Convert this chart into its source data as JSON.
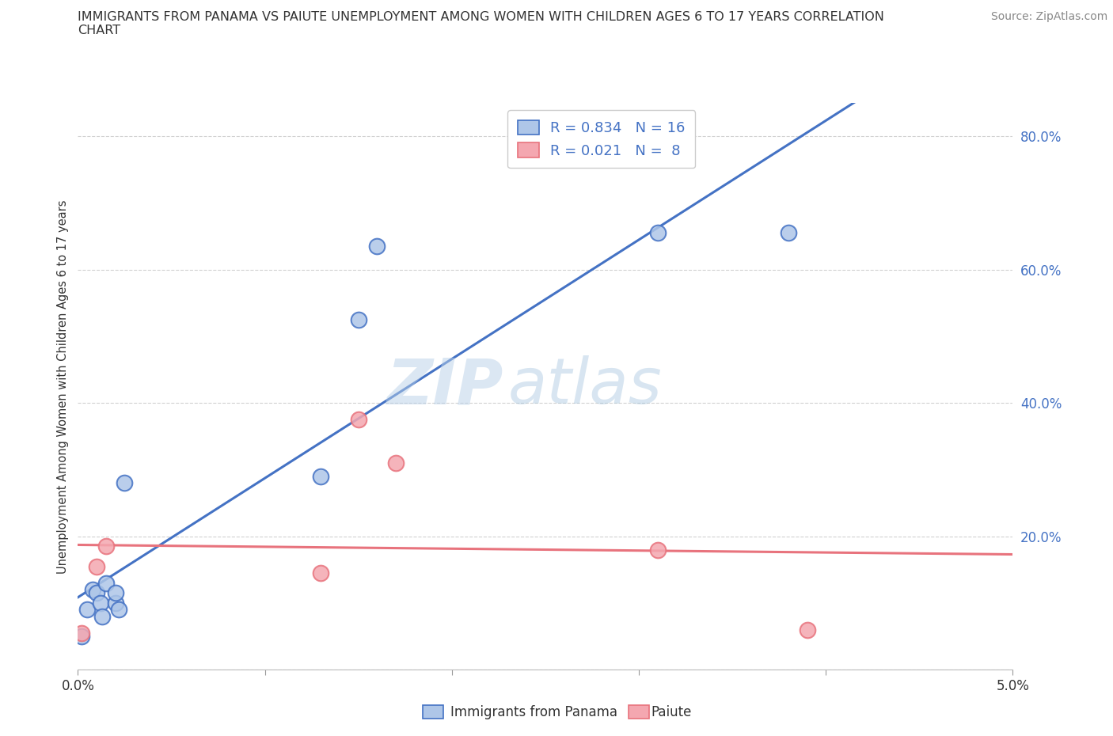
{
  "title_line1": "IMMIGRANTS FROM PANAMA VS PAIUTE UNEMPLOYMENT AMONG WOMEN WITH CHILDREN AGES 6 TO 17 YEARS CORRELATION",
  "title_line2": "CHART",
  "source": "Source: ZipAtlas.com",
  "ylabel": "Unemployment Among Women with Children Ages 6 to 17 years",
  "xlim": [
    0.0,
    0.05
  ],
  "ylim": [
    0.0,
    0.85
  ],
  "xticks": [
    0.0,
    0.01,
    0.02,
    0.03,
    0.04,
    0.05
  ],
  "xtick_labels": [
    "0.0%",
    "",
    "",
    "",
    "",
    "5.0%"
  ],
  "yticks": [
    0.0,
    0.2,
    0.4,
    0.6,
    0.8
  ],
  "ytick_labels": [
    "",
    "20.0%",
    "40.0%",
    "60.0%",
    "80.0%"
  ],
  "panama_x": [
    0.0002,
    0.0005,
    0.0008,
    0.001,
    0.0012,
    0.0013,
    0.0015,
    0.002,
    0.002,
    0.0022,
    0.0025,
    0.013,
    0.015,
    0.016,
    0.031,
    0.038
  ],
  "panama_y": [
    0.05,
    0.09,
    0.12,
    0.115,
    0.1,
    0.08,
    0.13,
    0.1,
    0.115,
    0.09,
    0.28,
    0.29,
    0.525,
    0.635,
    0.655,
    0.655
  ],
  "paiute_x": [
    0.0002,
    0.001,
    0.0015,
    0.013,
    0.015,
    0.017,
    0.031,
    0.039
  ],
  "paiute_y": [
    0.055,
    0.155,
    0.185,
    0.145,
    0.375,
    0.31,
    0.18,
    0.06
  ],
  "panama_color": "#aec6e8",
  "paiute_color": "#f4a7b0",
  "panama_edge_color": "#4472c4",
  "paiute_edge_color": "#e8737d",
  "panama_line_color": "#4472c4",
  "paiute_line_color": "#e8737d",
  "panama_R": 0.834,
  "panama_N": 16,
  "paiute_R": 0.021,
  "paiute_N": 8,
  "watermark_zip": "ZIP",
  "watermark_atlas": "atlas",
  "background_color": "#ffffff",
  "grid_color": "#cccccc",
  "legend_label_panama": "Immigrants from Panama",
  "legend_label_paiute": "Paiute",
  "title_fontsize": 11.5,
  "source_fontsize": 10,
  "tick_fontsize": 12,
  "ylabel_fontsize": 10.5,
  "legend_fontsize": 13,
  "scatter_size": 200,
  "line_width": 2.2
}
